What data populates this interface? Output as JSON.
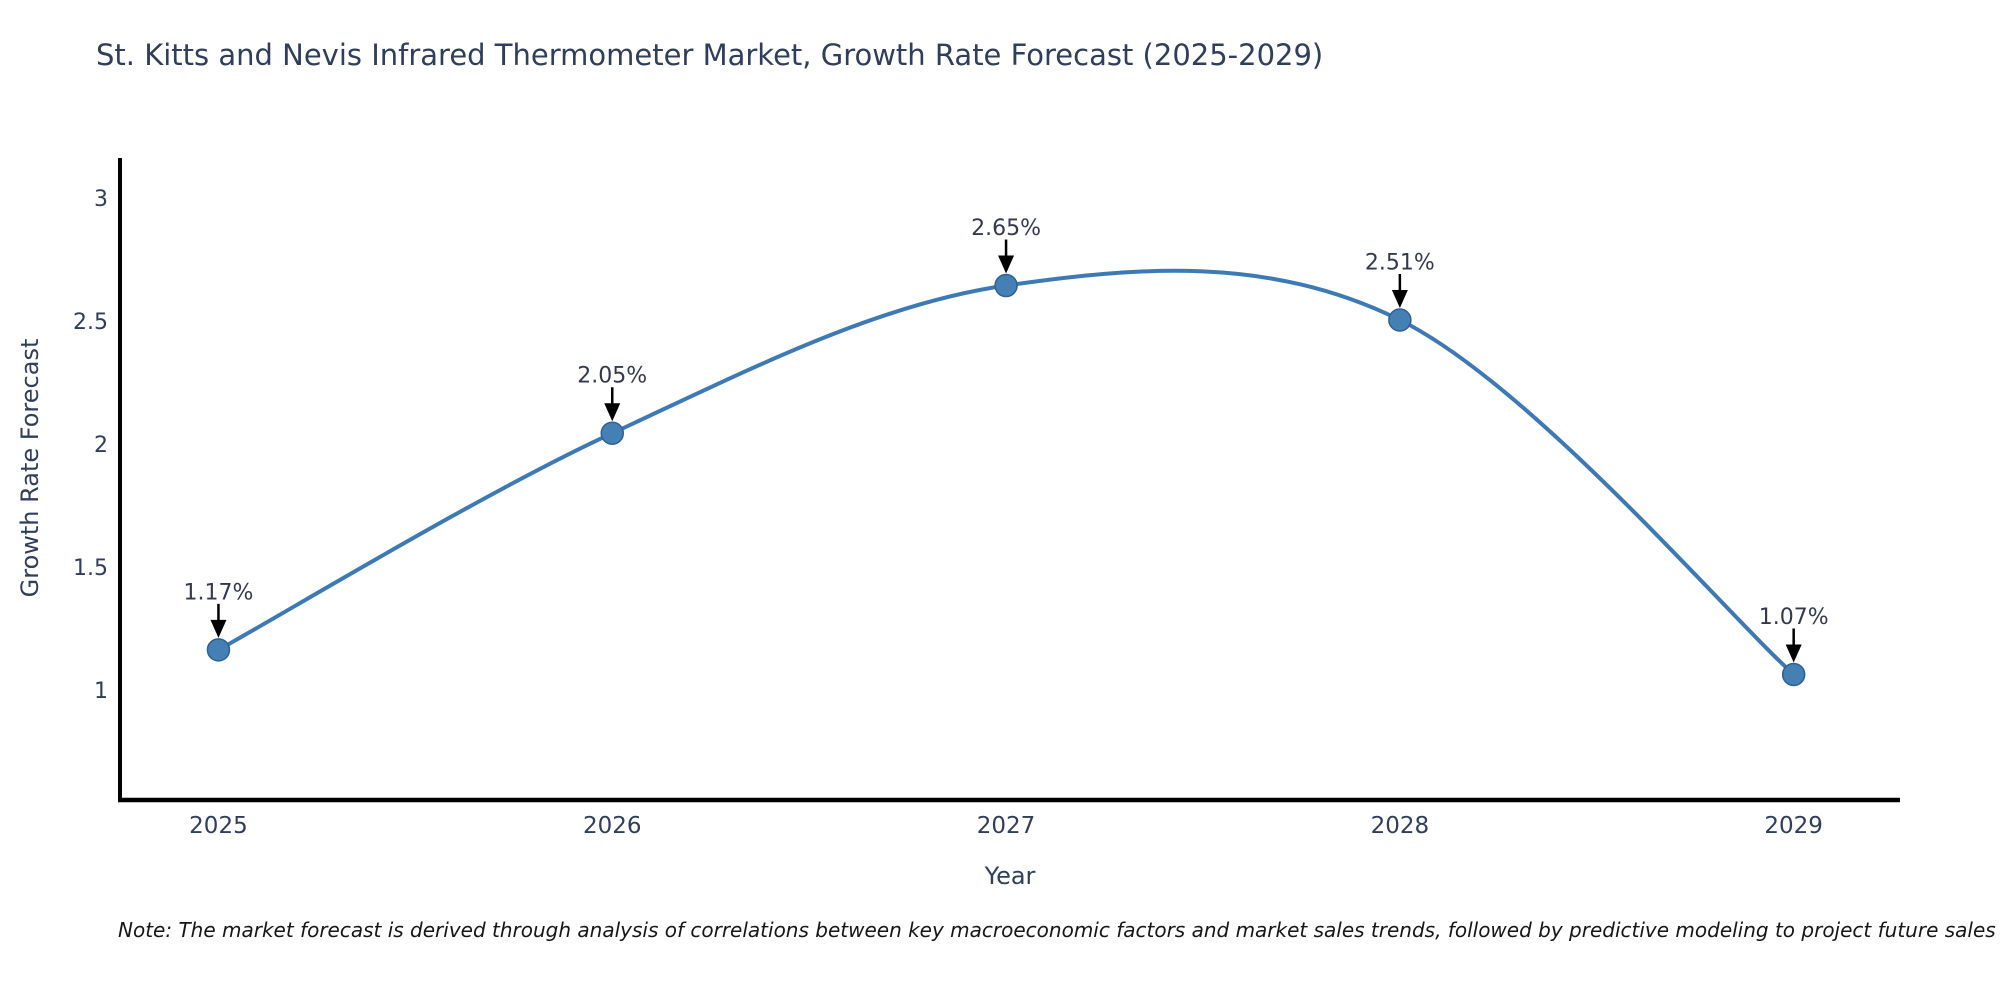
{
  "title": "St. Kitts and Nevis Infrared Thermometer Market, Growth Rate Forecast (2025-2029)",
  "note": "Note: The market forecast is derived through analysis of correlations between key macroeconomic factors and market sales trends, followed by predictive modeling to project future sales",
  "chart_data": {
    "type": "line",
    "line_shape": "spline",
    "title": "St. Kitts and Nevis Infrared Thermometer Market, Growth Rate Forecast (2025-2029)",
    "xlabel": "Year",
    "ylabel": "Growth Rate Forecast",
    "x": [
      2025,
      2026,
      2027,
      2028,
      2029
    ],
    "values": [
      1.17,
      2.05,
      2.65,
      2.51,
      1.07
    ],
    "point_labels": [
      "1.17%",
      "2.05%",
      "2.65%",
      "2.51%",
      "1.07%"
    ],
    "xticks": [
      2025,
      2026,
      2027,
      2028,
      2029
    ],
    "xtick_labels": [
      "2025",
      "2026",
      "2027",
      "2028",
      "2029"
    ],
    "yticks": [
      1,
      1.5,
      2,
      2.5,
      3
    ],
    "ytick_labels": [
      "1",
      "1.5",
      "2",
      "2.5",
      "3"
    ],
    "xlim": [
      2024.75,
      2029.27
    ],
    "ylim": [
      0.56,
      3.16
    ],
    "grid": false,
    "legend": false,
    "colors": {
      "line": "#3d7ab5",
      "marker_fill": "#4580b4",
      "marker_edge": "#2e6094",
      "axis_line": "#000000",
      "tick_text": "#2f3e5c",
      "annotation_text": "#343a4e",
      "annotation_arrow": "#000000"
    }
  }
}
